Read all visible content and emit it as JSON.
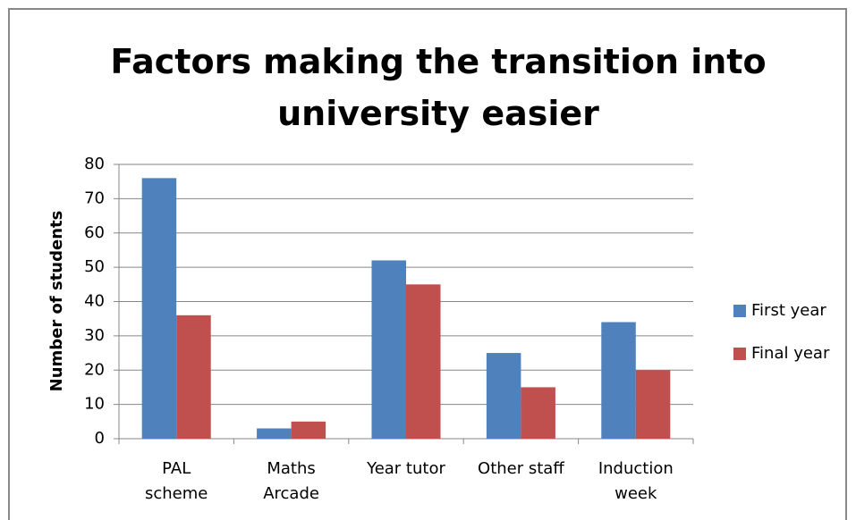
{
  "chart_data": {
    "type": "bar",
    "title": "Factors making the transition into university easier",
    "y_label": "Number of students",
    "categories": [
      "PAL\nscheme",
      "Maths\nArcade",
      "Year tutor",
      "Other staff",
      "Induction\nweek"
    ],
    "series": [
      {
        "name": "First year",
        "color": "#4f81bd",
        "values": [
          76,
          3,
          52,
          25,
          34
        ]
      },
      {
        "name": "Final year",
        "color": "#c0504d",
        "values": [
          36,
          5,
          45,
          15,
          20
        ]
      }
    ],
    "ylim": [
      0,
      80
    ],
    "yticks": [
      0,
      10,
      20,
      30,
      40,
      50,
      60,
      70,
      80
    ],
    "grid": true,
    "legend": "right"
  }
}
